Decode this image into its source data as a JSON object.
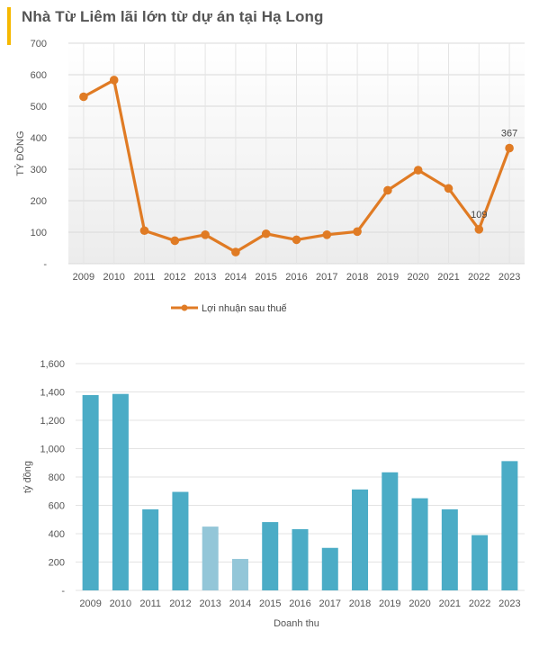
{
  "title": "Nhà Từ Liêm lãi lớn từ dự án tại Hạ Long",
  "colors": {
    "accent_bar": "#f6b800",
    "line": "#e07b24",
    "bar": "#4bacc6",
    "bar_light": "#93c6d8"
  },
  "chart_data": [
    {
      "type": "line",
      "x": [
        "2009",
        "2010",
        "2011",
        "2012",
        "2013",
        "2014",
        "2015",
        "2016",
        "2017",
        "2018",
        "2019",
        "2020",
        "2021",
        "2022",
        "2023"
      ],
      "series": [
        {
          "name": "Lợi nhuận sau thuế",
          "values": [
            530,
            583,
            105,
            73,
            92,
            37,
            95,
            76,
            92,
            102,
            233,
            297,
            239,
            109,
            367
          ]
        }
      ],
      "ylabel": "TỶ ĐỒNG",
      "ylim": [
        0,
        700
      ],
      "y_ticks": [
        "-",
        "100",
        "200",
        "300",
        "400",
        "500",
        "600",
        "700"
      ],
      "data_labels": {
        "13": "109",
        "14": "367"
      },
      "legend": "bottom",
      "grid": true
    },
    {
      "type": "bar",
      "categories": [
        "2009",
        "2010",
        "2011",
        "2012",
        "2013",
        "2014",
        "2015",
        "2016",
        "2017",
        "2018",
        "2019",
        "2020",
        "2021",
        "2022",
        "2023"
      ],
      "values": [
        1378,
        1386,
        572,
        695,
        450,
        222,
        482,
        432,
        300,
        712,
        833,
        650,
        572,
        390,
        912
      ],
      "highlight": [
        false,
        false,
        false,
        false,
        true,
        true,
        false,
        false,
        false,
        false,
        false,
        false,
        false,
        false,
        false
      ],
      "ylabel": "tỷ đồng",
      "xlabel": "Doanh thu",
      "ylim": [
        0,
        1600
      ],
      "y_ticks": [
        "-",
        "200",
        "400",
        "600",
        "800",
        "1,000",
        "1,200",
        "1,400",
        "1,600"
      ],
      "grid": true
    }
  ]
}
